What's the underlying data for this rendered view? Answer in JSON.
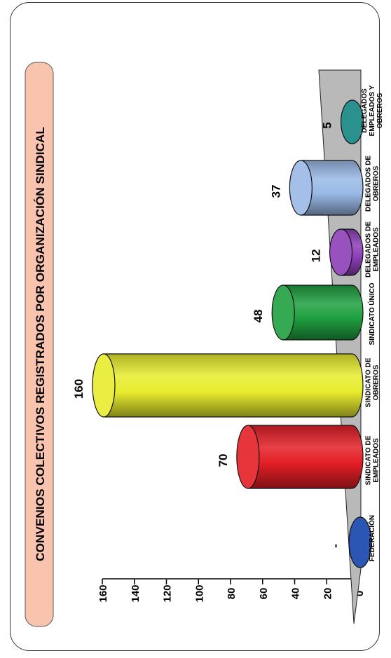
{
  "chart_data": {
    "type": "bar",
    "title": "CONVENIOS COLECTIVOS REGISTRADOS POR ORGANIZACIÓN SINDICAL",
    "categories": [
      "FEDERACIÓN",
      "SINDICATO DE EMPLEADOS",
      "SINDICATO DE OBREROS",
      "SINDICATO ÚNICO",
      "DELEGADOS DE EMPLEADOS",
      "DELEGADOS DE OBREROS",
      "DELEGADOS EMPLEADOS Y OBREROS"
    ],
    "category_lines": [
      [
        "FEDERACIÓN"
      ],
      [
        "SINDICATO DE",
        "EMPLEADOS"
      ],
      [
        "SINDICATO DE",
        "OBREROS"
      ],
      [
        "SINDICATO ÚNICO"
      ],
      [
        "DELEGADOS DE",
        "EMPLEADOS"
      ],
      [
        "DELEGADOS DE",
        "OBREROS"
      ],
      [
        "DELEGADOS",
        "EMPLEADOS Y",
        "OBREROS"
      ]
    ],
    "values": [
      0,
      70,
      160,
      48,
      12,
      37,
      5
    ],
    "data_labels": [
      "-",
      "70",
      "160",
      "48",
      "12",
      "37",
      "5"
    ],
    "colors": [
      "#2c56b3",
      "#e41e26",
      "#e8ec2e",
      "#1fa040",
      "#8d3fb8",
      "#9ab9e6",
      "#138582"
    ],
    "yticks": [
      "0",
      "20",
      "40",
      "60",
      "80",
      "100",
      "120",
      "140",
      "160"
    ],
    "ylim": [
      0,
      160
    ],
    "orientation": "rotated 90° counter-clockwise",
    "title_box_color": "#f9c4ae",
    "floor_color": "#b9b9b9"
  }
}
